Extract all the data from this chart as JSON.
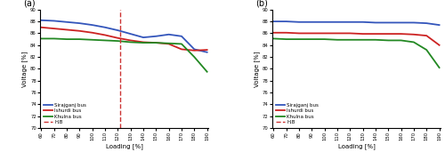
{
  "subplot_a": {
    "title": "(a)",
    "x": [
      60,
      70,
      80,
      90,
      100,
      110,
      120,
      130,
      140,
      150,
      160,
      170,
      180,
      190
    ],
    "sirajganj": [
      88.2,
      88.1,
      87.9,
      87.7,
      87.4,
      87.0,
      86.5,
      85.9,
      85.3,
      85.5,
      85.8,
      85.5,
      83.3,
      82.8
    ],
    "ishurdi": [
      87.0,
      86.8,
      86.6,
      86.4,
      86.1,
      85.7,
      85.2,
      84.8,
      84.5,
      84.4,
      84.2,
      83.3,
      83.1,
      83.2
    ],
    "khulna": [
      85.1,
      85.1,
      85.0,
      85.0,
      84.9,
      84.8,
      84.7,
      84.5,
      84.4,
      84.4,
      84.3,
      84.2,
      82.0,
      79.5
    ],
    "vline_x": 122,
    "ylim": [
      70,
      90
    ],
    "xlabel": "Loading [%]",
    "ylabel": "Voltage [%]"
  },
  "subplot_b": {
    "title": "(b)",
    "x": [
      60,
      70,
      80,
      90,
      100,
      110,
      120,
      130,
      140,
      150,
      160,
      170,
      180,
      190
    ],
    "sirajganj": [
      88.0,
      88.0,
      87.9,
      87.9,
      87.9,
      87.9,
      87.9,
      87.9,
      87.8,
      87.8,
      87.8,
      87.8,
      87.7,
      87.4
    ],
    "ishurdi": [
      86.1,
      86.1,
      86.0,
      86.0,
      86.0,
      86.0,
      86.0,
      85.9,
      85.9,
      85.9,
      85.9,
      85.8,
      85.6,
      84.0
    ],
    "khulna": [
      85.1,
      85.0,
      85.0,
      85.0,
      85.0,
      84.9,
      84.9,
      84.9,
      84.9,
      84.8,
      84.8,
      84.5,
      83.2,
      80.2
    ],
    "ylim": [
      70,
      90
    ],
    "xlabel": "Loading [%]",
    "ylabel": "Voltage [%]"
  },
  "colors": {
    "sirajganj": "#3355bb",
    "ishurdi": "#cc2222",
    "khulna": "#228822",
    "hb": "#cc3333"
  },
  "x_ticks": [
    60,
    70,
    80,
    90,
    100,
    110,
    120,
    130,
    140,
    150,
    160,
    170,
    180,
    190
  ],
  "y_ticks": [
    70,
    72,
    74,
    76,
    78,
    80,
    82,
    84,
    86,
    88,
    90
  ]
}
